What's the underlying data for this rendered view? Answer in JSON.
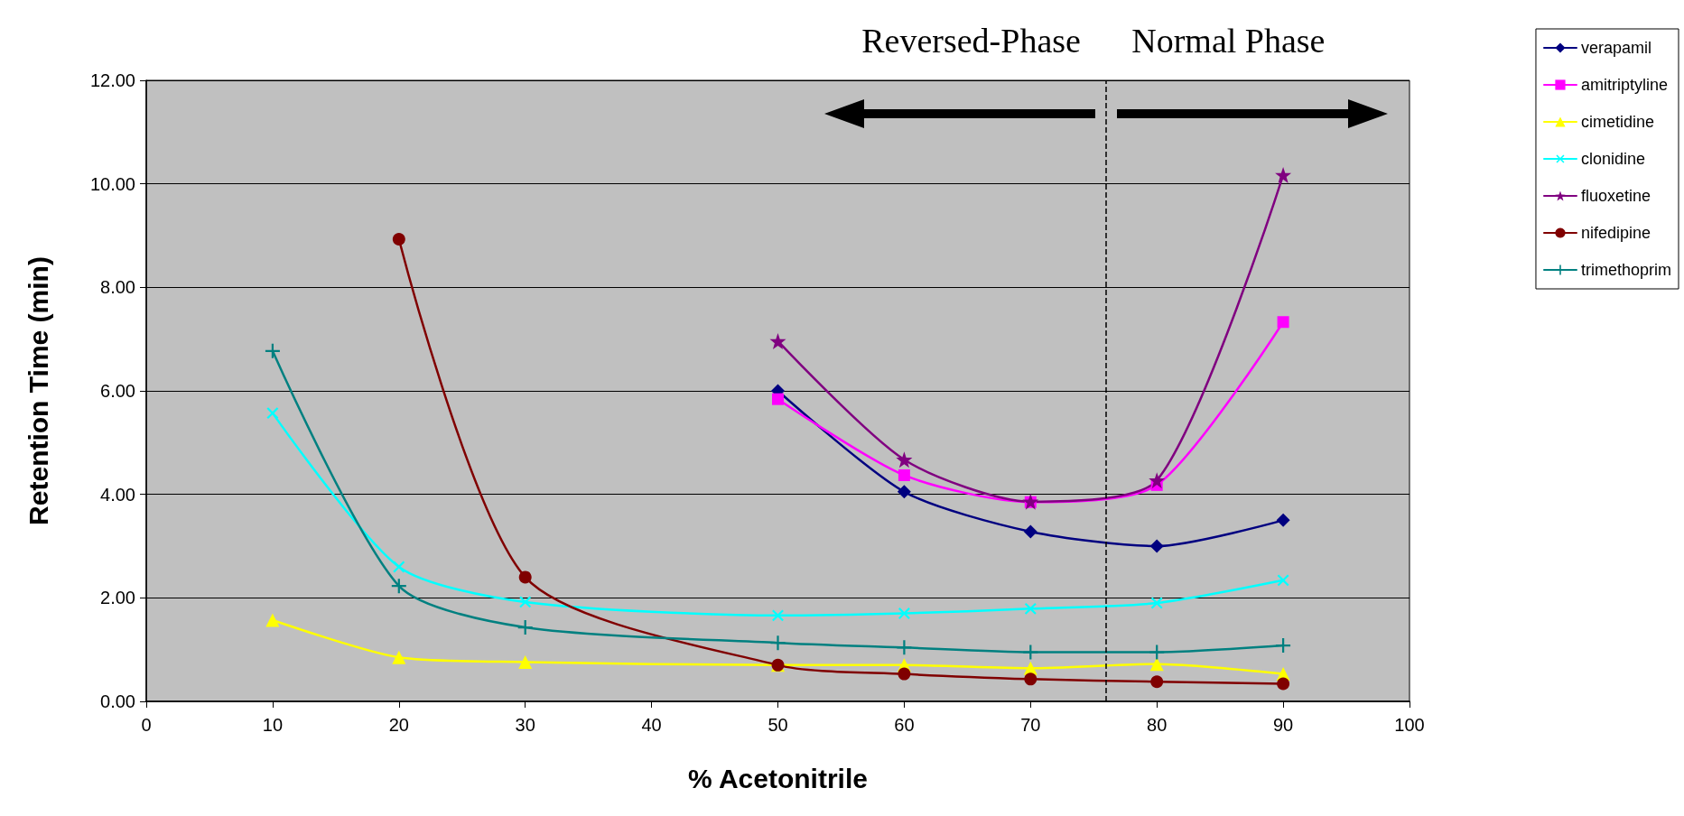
{
  "chart_data": {
    "type": "line",
    "xlabel": "% Acetonitrile",
    "ylabel": "Retention Time (min)",
    "annotations": [
      "Reversed-Phase",
      "Normal Phase"
    ],
    "x": [
      10,
      20,
      30,
      50,
      60,
      70,
      80,
      90
    ],
    "xlim": [
      0,
      100
    ],
    "xticks": [
      0,
      10,
      20,
      30,
      40,
      50,
      60,
      70,
      80,
      90,
      100
    ],
    "ylim": [
      0,
      12
    ],
    "yticks": [
      {
        "value": 0,
        "label": "0.00"
      },
      {
        "value": 2,
        "label": "2.00"
      },
      {
        "value": 4,
        "label": "4.00"
      },
      {
        "value": 6,
        "label": "6.00"
      },
      {
        "value": 8,
        "label": "8.00"
      },
      {
        "value": 10,
        "label": "10.00"
      },
      {
        "value": 12,
        "label": "12.00"
      }
    ],
    "grid": "y",
    "legend": "top right",
    "line_style": "solid",
    "ref_lines": [
      {
        "axis": "x",
        "value": 76,
        "color": "#000000",
        "line_style": "dashed"
      }
    ],
    "series": [
      {
        "name": "verapamil",
        "color": "#000080",
        "marker": "diamond",
        "values": [
          null,
          null,
          null,
          6.0,
          4.05,
          3.28,
          3.0,
          3.5
        ]
      },
      {
        "name": "amitriptyline",
        "color": "#ff00ff",
        "marker": "square",
        "values": [
          null,
          null,
          null,
          5.84,
          4.37,
          3.85,
          4.18,
          7.33
        ]
      },
      {
        "name": "cimetidine",
        "color": "#ffff00",
        "marker": "triangle",
        "values": [
          1.57,
          0.85,
          0.76,
          0.7,
          0.7,
          0.64,
          0.72,
          0.53
        ]
      },
      {
        "name": "clonidine",
        "color": "#00ffff",
        "marker": "cross",
        "values": [
          5.57,
          2.6,
          1.92,
          1.66,
          1.7,
          1.79,
          1.9,
          2.34
        ]
      },
      {
        "name": "fluoxetine",
        "color": "#800080",
        "marker": "star",
        "values": [
          null,
          null,
          null,
          6.96,
          4.67,
          3.86,
          4.27,
          10.17
        ]
      },
      {
        "name": "nifedipine",
        "color": "#800000",
        "marker": "circle",
        "values": [
          null,
          8.93,
          2.4,
          0.7,
          0.53,
          0.43,
          0.38,
          0.34
        ]
      },
      {
        "name": "trimethoprim",
        "color": "#008080",
        "marker": "plus",
        "values": [
          6.77,
          2.23,
          1.43,
          1.13,
          1.04,
          0.95,
          0.95,
          1.08
        ]
      }
    ]
  }
}
